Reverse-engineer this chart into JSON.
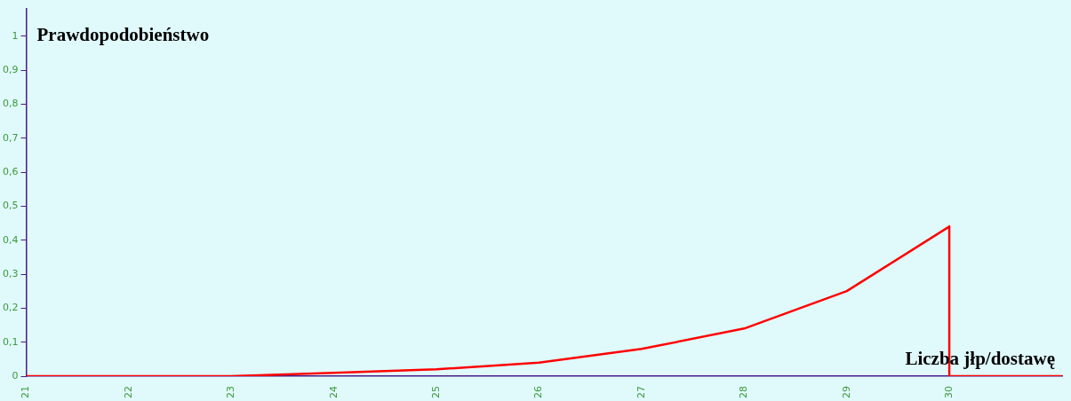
{
  "chart_data": {
    "type": "line",
    "xlabel": "Liczba jłp/dostawę",
    "ylabel": "Prawdopodobieństwo",
    "x": [
      21,
      22,
      23,
      24,
      25,
      26,
      27,
      28,
      29,
      30,
      30,
      31.1
    ],
    "values": [
      0,
      0,
      0,
      0.01,
      0.02,
      0.04,
      0.08,
      0.14,
      0.25,
      0.44,
      0,
      0
    ],
    "color": "#ff0000",
    "xlim": [
      21,
      31.1
    ],
    "ylim": [
      0,
      1.08
    ],
    "xticks": [
      21,
      22,
      23,
      24,
      25,
      26,
      27,
      28,
      29,
      30
    ],
    "yticks": [
      0,
      {
        "value": 0.1,
        "label": "0,1"
      },
      {
        "value": 0.2,
        "label": "0,2"
      },
      {
        "value": 0.3,
        "label": "0,3"
      },
      {
        "value": 0.4,
        "label": "0,4"
      },
      {
        "value": 0.5,
        "label": "0,5"
      },
      {
        "value": 0.6,
        "label": "0,6"
      },
      {
        "value": 0.7,
        "label": "0,7"
      },
      {
        "value": 0.8,
        "label": "0,8"
      },
      {
        "value": 0.9,
        "label": "0,9"
      },
      1
    ],
    "grid": false,
    "legend": false,
    "marker": "none",
    "line_style": "solid"
  }
}
